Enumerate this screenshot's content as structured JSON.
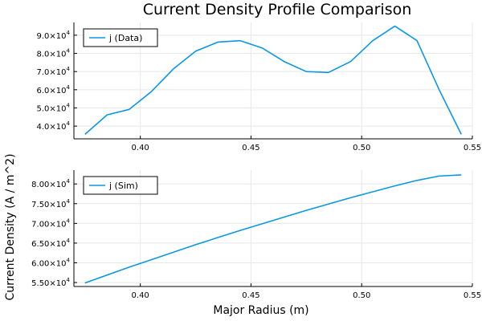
{
  "title": "Current Density Profile Comparison",
  "xlabel": "Major Radius (m)",
  "ylabel": "Current Density (A / m^2)",
  "colors": {
    "series": "#0a97e6",
    "axis": "#000000",
    "grid": "#e8e8e8"
  },
  "chart_data": [
    {
      "type": "line",
      "series": [
        {
          "name": "j (Data)",
          "x": [
            0.375,
            0.385,
            0.395,
            0.405,
            0.415,
            0.425,
            0.435,
            0.445,
            0.455,
            0.465,
            0.475,
            0.485,
            0.495,
            0.505,
            0.515,
            0.525,
            0.535,
            0.545
          ],
          "values": [
            35500,
            46200,
            49200,
            59000,
            71500,
            81200,
            86200,
            87000,
            83000,
            75500,
            70000,
            69500,
            75500,
            87000,
            95000,
            87000,
            60000,
            35500
          ]
        }
      ],
      "xlim": [
        0.37,
        0.55
      ],
      "ylim": [
        33000,
        97000
      ],
      "xticks": [
        0.4,
        0.45,
        0.5,
        0.55
      ],
      "xtick_labels": [
        "0.40",
        "0.45",
        "0.50",
        "0.55"
      ],
      "yticks": [
        40000,
        50000,
        60000,
        70000,
        80000,
        90000
      ],
      "ytick_labels": [
        {
          "mantissa": "4.0×10",
          "exp": "4"
        },
        {
          "mantissa": "5.0×10",
          "exp": "4"
        },
        {
          "mantissa": "6.0×10",
          "exp": "4"
        },
        {
          "mantissa": "7.0×10",
          "exp": "4"
        },
        {
          "mantissa": "8.0×10",
          "exp": "4"
        },
        {
          "mantissa": "9.0×10",
          "exp": "4"
        }
      ],
      "grid": true,
      "legend": "top-left"
    },
    {
      "type": "line",
      "series": [
        {
          "name": "j (Sim)",
          "x": [
            0.375,
            0.385,
            0.395,
            0.405,
            0.415,
            0.425,
            0.435,
            0.445,
            0.455,
            0.465,
            0.475,
            0.485,
            0.495,
            0.505,
            0.515,
            0.525,
            0.535,
            0.545
          ],
          "values": [
            54900,
            56900,
            58900,
            60800,
            62700,
            64600,
            66400,
            68200,
            69900,
            71600,
            73300,
            74900,
            76500,
            78000,
            79500,
            80900,
            82000,
            82300
          ]
        }
      ],
      "xlim": [
        0.37,
        0.55
      ],
      "ylim": [
        54000,
        83500
      ],
      "xticks": [
        0.4,
        0.45,
        0.5,
        0.55
      ],
      "xtick_labels": [
        "0.40",
        "0.45",
        "0.50",
        "0.55"
      ],
      "yticks": [
        55000,
        60000,
        65000,
        70000,
        75000,
        80000
      ],
      "ytick_labels": [
        {
          "mantissa": "5.50×10",
          "exp": "4"
        },
        {
          "mantissa": "6.00×10",
          "exp": "4"
        },
        {
          "mantissa": "6.50×10",
          "exp": "4"
        },
        {
          "mantissa": "7.00×10",
          "exp": "4"
        },
        {
          "mantissa": "7.50×10",
          "exp": "4"
        },
        {
          "mantissa": "8.00×10",
          "exp": "4"
        }
      ],
      "grid": true,
      "legend": "top-left"
    }
  ]
}
